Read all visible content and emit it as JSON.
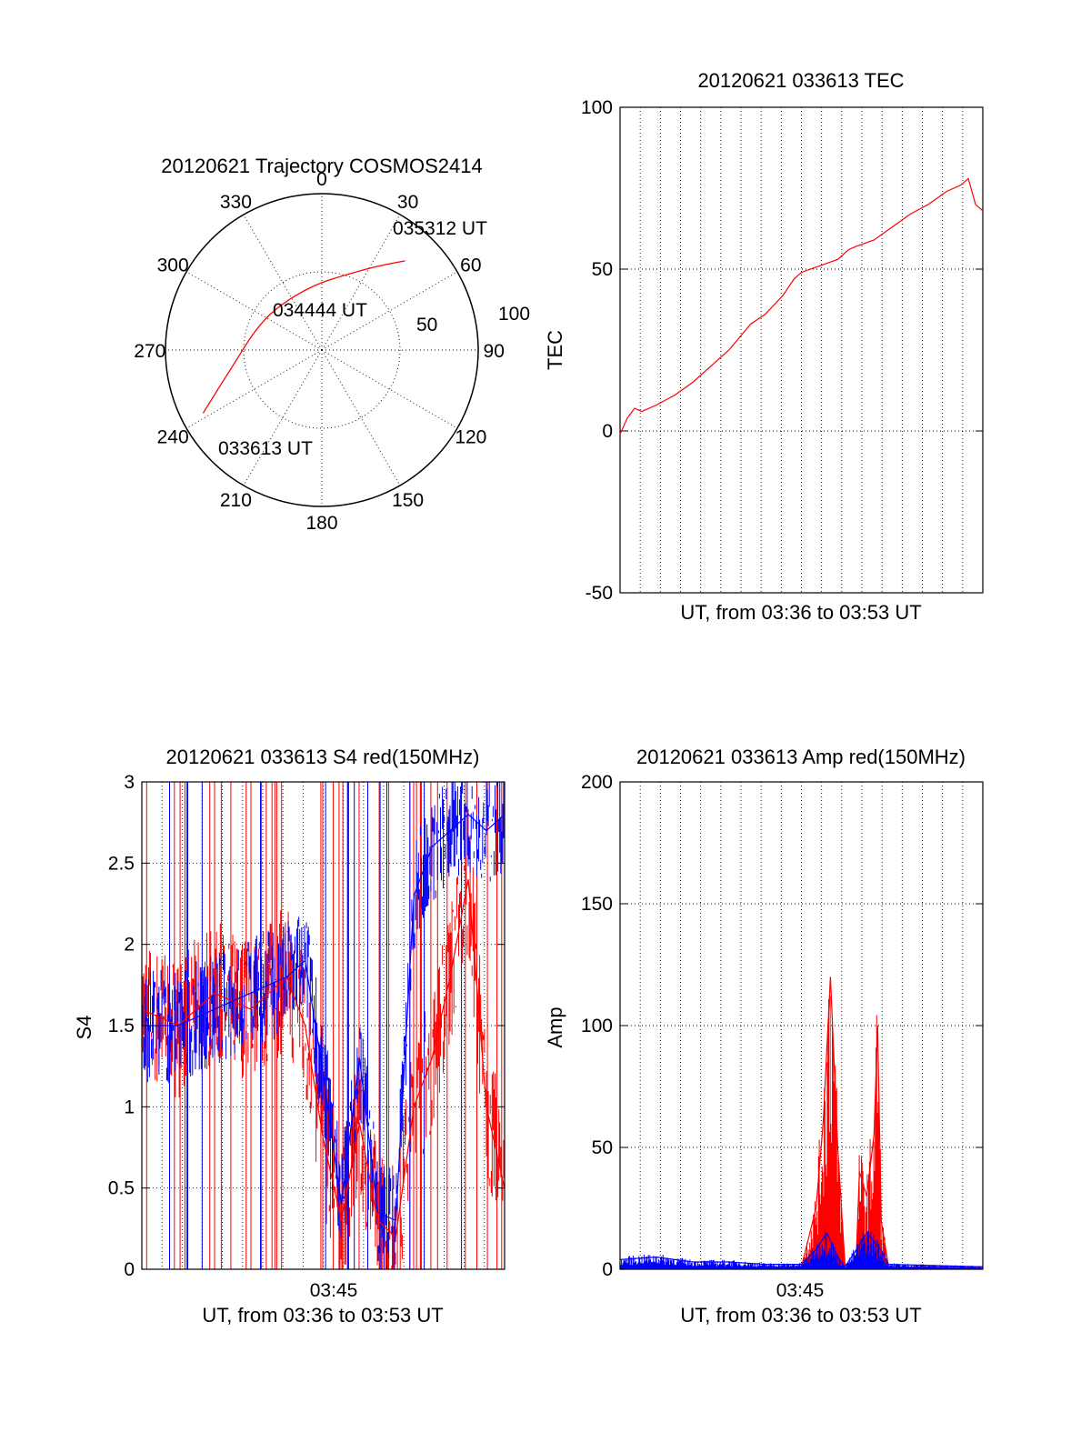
{
  "chart_data": [
    {
      "type": "polar",
      "title": "20120621 Trajectory COSMOS2414",
      "angle_labels": [
        "0",
        "30",
        "60",
        "90",
        "120",
        "150",
        "180",
        "210",
        "240",
        "270",
        "300",
        "330"
      ],
      "ring_labels": [
        "50",
        "100"
      ],
      "rmax": 100,
      "series": [
        {
          "color": "#ff0000",
          "points": [
            {
              "az": 242,
              "r": 86,
              "label": "033613 UT"
            },
            {
              "az": 250,
              "r": 70
            },
            {
              "az": 262,
              "r": 56
            },
            {
              "az": 285,
              "r": 45
            },
            {
              "az": 312,
              "r": 40
            },
            {
              "az": 352,
              "r": 42,
              "label": "034444 UT"
            },
            {
              "az": 20,
              "r": 52
            },
            {
              "az": 34,
              "r": 65
            },
            {
              "az": 43,
              "r": 78,
              "label": "035312 UT"
            }
          ]
        }
      ]
    },
    {
      "type": "line",
      "title": "20120621 033613 TEC",
      "ylabel": "TEC",
      "xlabel": "UT, from 03:36 to 03:53 UT",
      "ylim": [
        -50,
        100
      ],
      "yticks": [
        "-50",
        "0",
        "50",
        "100"
      ],
      "xlim": [
        0,
        1
      ],
      "grid": true,
      "series": [
        {
          "color": "#ff0000",
          "x": [
            0.0,
            0.02,
            0.04,
            0.06,
            0.1,
            0.15,
            0.2,
            0.25,
            0.3,
            0.33,
            0.36,
            0.4,
            0.45,
            0.48,
            0.5,
            0.55,
            0.6,
            0.63,
            0.65,
            0.7,
            0.75,
            0.8,
            0.85,
            0.9,
            0.94,
            0.96,
            0.98,
            1.0
          ],
          "y": [
            -1,
            4,
            7,
            6,
            8,
            11,
            15,
            20,
            25,
            29,
            33,
            36,
            42,
            47,
            49,
            51,
            53,
            56,
            57,
            59,
            63,
            67,
            70,
            74,
            76,
            78,
            70,
            68
          ]
        }
      ]
    },
    {
      "type": "line",
      "title": "20120621 033613 S4 red(150MHz)",
      "ylabel": "S4",
      "xlabel": "UT, from 03:36 to 03:53 UT",
      "ylim": [
        0,
        3
      ],
      "yticks": [
        "0",
        "0.5",
        "1",
        "1.5",
        "2",
        "2.5",
        "3"
      ],
      "xtick_labels": [
        "03:45"
      ],
      "grid": true,
      "series": [
        {
          "color": "#ff0000",
          "x": [
            0.0,
            0.1,
            0.2,
            0.3,
            0.4,
            0.45,
            0.5,
            0.55,
            0.6,
            0.65,
            0.7,
            0.75,
            0.8,
            0.85,
            0.9,
            0.95,
            1.0
          ],
          "y": [
            1.6,
            1.5,
            1.7,
            1.6,
            1.8,
            1.5,
            0.8,
            0.3,
            0.9,
            0.3,
            0.2,
            1.0,
            1.3,
            1.8,
            2.4,
            1.0,
            0.5
          ]
        },
        {
          "color": "#0000ff",
          "x": [
            0.0,
            0.1,
            0.2,
            0.3,
            0.4,
            0.45,
            0.5,
            0.55,
            0.6,
            0.65,
            0.7,
            0.75,
            0.8,
            0.85,
            0.9,
            0.95,
            1.0
          ],
          "y": [
            1.5,
            1.5,
            1.6,
            1.7,
            1.8,
            1.9,
            1.2,
            0.4,
            1.3,
            0.35,
            0.3,
            2.3,
            2.6,
            2.7,
            2.8,
            2.7,
            2.8
          ]
        }
      ]
    },
    {
      "type": "line",
      "title": "20120621 033613 Amp red(150MHz)",
      "ylabel": "Amp",
      "xlabel": "UT, from 03:36 to 03:53 UT",
      "ylim": [
        0,
        200
      ],
      "yticks": [
        "0",
        "50",
        "100",
        "150",
        "200"
      ],
      "xtick_labels": [
        "03:45"
      ],
      "grid": true,
      "series": [
        {
          "color": "#ff0000",
          "x": [
            0.0,
            0.5,
            0.54,
            0.56,
            0.58,
            0.6,
            0.62,
            0.65,
            0.66,
            0.68,
            0.7,
            0.71,
            0.72,
            0.74,
            1.0
          ],
          "y": [
            0,
            1,
            25,
            60,
            120,
            50,
            2,
            1,
            40,
            30,
            55,
            100,
            20,
            1,
            1
          ]
        },
        {
          "color": "#0000ff",
          "x": [
            0.0,
            0.1,
            0.2,
            0.3,
            0.4,
            0.5,
            0.54,
            0.57,
            0.6,
            0.62,
            0.66,
            0.68,
            0.72,
            0.74,
            1.0
          ],
          "y": [
            4,
            5,
            3,
            3,
            2,
            2,
            8,
            15,
            5,
            1,
            10,
            15,
            8,
            2,
            1
          ]
        }
      ]
    }
  ]
}
